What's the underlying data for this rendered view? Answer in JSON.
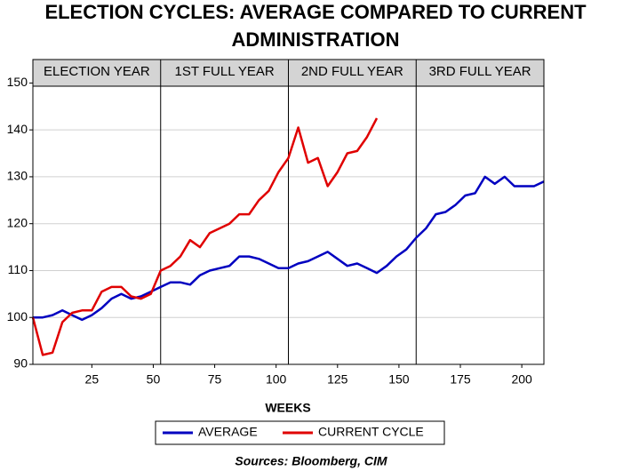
{
  "chart_data": {
    "type": "line",
    "title": [
      "ELECTION CYCLES:  AVERAGE COMPARED TO CURRENT",
      "ADMINISTRATION"
    ],
    "x_label": "WEEKS",
    "source": "Sources:  Bloomberg, CIM",
    "year_labels": [
      "ELECTION YEAR",
      "1ST FULL YEAR",
      "2ND FULL YEAR",
      "3RD FULL YEAR"
    ],
    "year_boundaries": [
      53,
      105,
      157
    ],
    "x": [
      1,
      5,
      9,
      13,
      17,
      21,
      25,
      29,
      33,
      37,
      41,
      45,
      49,
      53,
      57,
      61,
      65,
      69,
      73,
      77,
      81,
      85,
      89,
      93,
      97,
      101,
      105,
      109,
      113,
      117,
      121,
      125,
      129,
      133,
      137,
      141,
      145,
      149,
      153,
      157,
      161,
      165,
      169,
      173,
      177,
      181,
      185,
      189,
      193,
      197,
      201,
      205,
      209
    ],
    "series": [
      {
        "name": "AVERAGE",
        "color": "#0000c0",
        "values": [
          100,
          100,
          100.5,
          101.5,
          100.5,
          99.5,
          100.5,
          102,
          104,
          105,
          104,
          104.5,
          105.5,
          106.5,
          107.5,
          107.5,
          107,
          109,
          110,
          110.5,
          111,
          113,
          113,
          112.5,
          111.5,
          110.5,
          110.5,
          111.5,
          112,
          113,
          114,
          112.5,
          111,
          111.5,
          110.5,
          109.5,
          111,
          113,
          114.5,
          117,
          119,
          122,
          122.5,
          124,
          126,
          126.5,
          130,
          128.5,
          130,
          128,
          128,
          128,
          129
        ]
      },
      {
        "name": "CURRENT CYCLE",
        "color": "#e00000",
        "values": [
          100,
          92,
          92.5,
          99,
          101,
          101.5,
          101.5,
          105.5,
          106.5,
          106.5,
          104.5,
          104,
          105,
          110,
          111,
          113,
          116.5,
          115,
          118,
          119,
          120,
          122,
          122,
          125,
          127,
          131,
          134,
          140.5,
          133,
          134,
          128,
          131,
          135,
          135.5,
          138.5,
          142.5,
          null,
          null,
          null,
          null,
          null,
          null,
          null,
          null,
          null,
          null,
          null,
          null,
          null,
          null,
          null,
          null,
          null
        ]
      }
    ],
    "xlim": [
      1,
      209
    ],
    "xticks": [
      25,
      50,
      75,
      100,
      125,
      150,
      175,
      200
    ],
    "ylim": [
      90,
      155
    ],
    "yticks": [
      90,
      100,
      110,
      120,
      130,
      140,
      150
    ],
    "grid": true
  }
}
